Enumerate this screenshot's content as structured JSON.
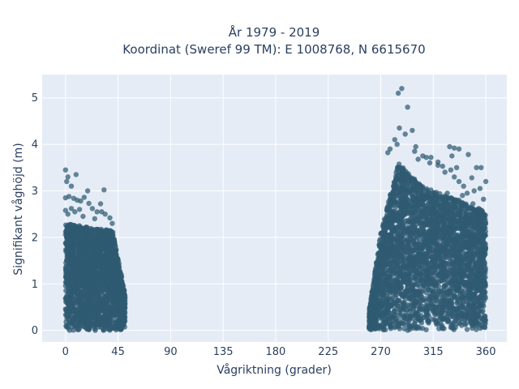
{
  "chart_data": {
    "type": "scatter",
    "title_line1": "År 1979 - 2019",
    "title_line2": "Koordinat (Sweref 99 TM): E 1008768, N 6615670",
    "xlabel": "Vågriktning (grader)",
    "ylabel": "Signifikant våghöjd (m)",
    "xlim": [
      -20,
      378
    ],
    "ylim": [
      -0.25,
      5.5
    ],
    "x_ticks": [
      0,
      45,
      90,
      135,
      180,
      225,
      270,
      315,
      360
    ],
    "y_ticks": [
      0,
      1,
      2,
      3,
      4,
      5
    ],
    "grid": true,
    "background_color": "#e5ecf6",
    "marker_color": "#2f5a72",
    "clusters": [
      {
        "x_range": [
          0,
          51
        ],
        "y_max": 2.3,
        "note_max": 2.9
      },
      {
        "x_range": [
          260,
          360
        ],
        "y_max": 3.6,
        "note_max": 4.3
      }
    ],
    "points": [
      [
        0,
        3.45
      ],
      [
        2,
        3.3
      ],
      [
        1,
        3.2
      ],
      [
        9,
        3.35
      ],
      [
        5,
        3.1
      ],
      [
        19,
        3.0
      ],
      [
        33,
        3.02
      ],
      [
        0,
        2.85
      ],
      [
        3,
        2.88
      ],
      [
        7,
        2.84
      ],
      [
        10,
        2.8
      ],
      [
        13,
        2.78
      ],
      [
        16,
        2.86
      ],
      [
        20,
        2.73
      ],
      [
        23,
        2.62
      ],
      [
        27,
        2.55
      ],
      [
        31,
        2.55
      ],
      [
        34,
        2.5
      ],
      [
        38,
        2.42
      ],
      [
        40,
        2.3
      ],
      [
        30,
        2.72
      ],
      [
        0,
        2.58
      ],
      [
        2,
        2.5
      ],
      [
        5,
        2.62
      ],
      [
        8,
        2.55
      ],
      [
        12,
        2.6
      ],
      [
        15,
        2.45
      ],
      [
        25,
        2.4
      ],
      [
        288,
        5.2
      ],
      [
        285,
        5.1
      ],
      [
        293,
        4.8
      ],
      [
        286,
        4.35
      ],
      [
        297,
        4.3
      ],
      [
        291,
        4.22
      ],
      [
        282,
        4.1
      ],
      [
        284,
        4.0
      ],
      [
        300,
        3.95
      ],
      [
        299,
        3.85
      ],
      [
        306,
        3.75
      ],
      [
        309,
        3.72
      ],
      [
        313,
        3.72
      ],
      [
        278,
        3.9
      ],
      [
        276,
        3.82
      ],
      [
        319,
        3.62
      ],
      [
        323,
        3.53
      ],
      [
        325,
        3.4
      ],
      [
        312,
        3.6
      ],
      [
        302,
        3.68
      ],
      [
        319,
        3.55
      ],
      [
        335,
        3.5
      ],
      [
        330,
        3.45
      ],
      [
        329,
        3.95
      ],
      [
        333,
        3.92
      ],
      [
        331,
        3.75
      ],
      [
        337,
        3.9
      ],
      [
        345,
        3.78
      ],
      [
        348,
        3.28
      ],
      [
        352,
        3.5
      ],
      [
        356,
        3.5
      ],
      [
        360,
        3.2
      ],
      [
        355,
        3.05
      ],
      [
        350,
        3.0
      ],
      [
        340,
        2.9
      ],
      [
        333,
        3.3
      ],
      [
        341,
        3.1
      ],
      [
        344,
        2.95
      ],
      [
        358,
        2.82
      ],
      [
        354,
        2.62
      ],
      [
        352,
        2.55
      ],
      [
        346,
        2.5
      ],
      [
        337,
        2.8
      ],
      [
        327,
        2.95
      ],
      [
        337,
        3.2
      ],
      [
        330,
        2.85
      ],
      [
        326,
        2.75
      ],
      [
        349,
        2.72
      ]
    ]
  }
}
